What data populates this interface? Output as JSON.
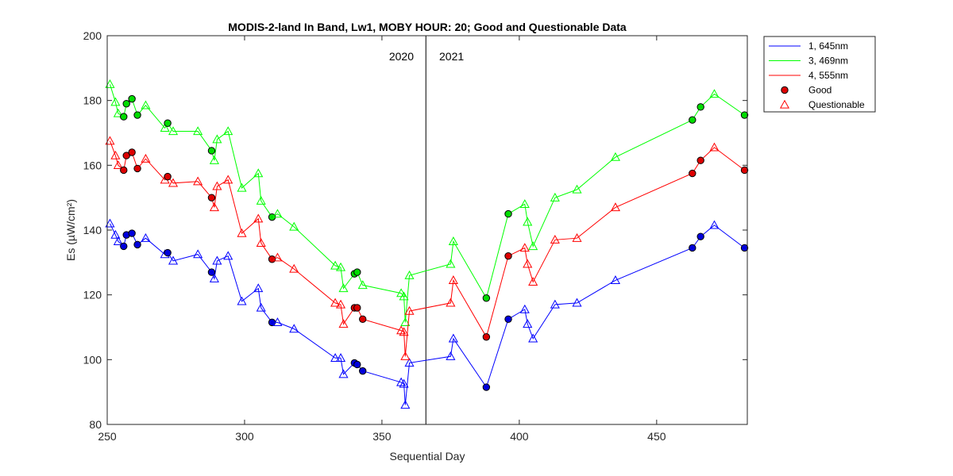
{
  "chart_data": {
    "type": "line",
    "title": "MODIS-2-land In Band,  Lw1, MOBY HOUR: 20;  Good and Questionable Data",
    "xlabel": "Sequential Day",
    "ylabel": "Es (µW/cm²)",
    "xlim": [
      250,
      483
    ],
    "ylim": [
      80,
      200
    ],
    "xticks": [
      250,
      300,
      350,
      400,
      450
    ],
    "yticks": [
      80,
      100,
      120,
      140,
      160,
      180,
      200
    ],
    "grid": false,
    "legend_position": "outside-top-right",
    "year_divider": {
      "x": 366,
      "left_label": "2020",
      "right_label": "2021"
    },
    "series": [
      {
        "name": "1, 645nm",
        "color": "#0000ff",
        "fill": "#0000dd",
        "points": [
          {
            "x": 251,
            "y": 142,
            "q": "Q"
          },
          {
            "x": 253,
            "y": 138.5,
            "q": "Q"
          },
          {
            "x": 254,
            "y": 136.5,
            "q": "Q"
          },
          {
            "x": 256,
            "y": 135,
            "q": "G"
          },
          {
            "x": 257,
            "y": 138.5,
            "q": "G"
          },
          {
            "x": 259,
            "y": 139,
            "q": "G"
          },
          {
            "x": 261,
            "y": 135.5,
            "q": "G"
          },
          {
            "x": 264,
            "y": 137.5,
            "q": "Q"
          },
          {
            "x": 271,
            "y": 132.5,
            "q": "Q"
          },
          {
            "x": 272,
            "y": 133,
            "q": "G"
          },
          {
            "x": 274,
            "y": 130.5,
            "q": "Q"
          },
          {
            "x": 283,
            "y": 132.5,
            "q": "Q"
          },
          {
            "x": 288,
            "y": 127,
            "q": "G"
          },
          {
            "x": 289,
            "y": 125,
            "q": "Q"
          },
          {
            "x": 290,
            "y": 130.5,
            "q": "Q"
          },
          {
            "x": 294,
            "y": 132,
            "q": "Q"
          },
          {
            "x": 299,
            "y": 118,
            "q": "Q"
          },
          {
            "x": 305,
            "y": 122,
            "q": "Q"
          },
          {
            "x": 306,
            "y": 116,
            "q": "Q"
          },
          {
            "x": 310,
            "y": 111.5,
            "q": "G"
          },
          {
            "x": 312,
            "y": 111.5,
            "q": "Q"
          },
          {
            "x": 318,
            "y": 109.5,
            "q": "Q"
          },
          {
            "x": 333,
            "y": 100.5,
            "q": "Q"
          },
          {
            "x": 335,
            "y": 100.5,
            "q": "Q"
          },
          {
            "x": 336,
            "y": 95.5,
            "q": "Q"
          },
          {
            "x": 340,
            "y": 99,
            "q": "G"
          },
          {
            "x": 341,
            "y": 98.5,
            "q": "G"
          },
          {
            "x": 343,
            "y": 96.5,
            "q": "G"
          },
          {
            "x": 357,
            "y": 93,
            "q": "Q"
          },
          {
            "x": 358,
            "y": 92.5,
            "q": "Q"
          },
          {
            "x": 358.5,
            "y": 86,
            "q": "Q"
          },
          {
            "x": 360,
            "y": 99,
            "q": "Q"
          },
          {
            "x": 375,
            "y": 101,
            "q": "Q"
          },
          {
            "x": 376,
            "y": 106.5,
            "q": "Q"
          },
          {
            "x": 388,
            "y": 91.5,
            "q": "G"
          },
          {
            "x": 396,
            "y": 112.5,
            "q": "G"
          },
          {
            "x": 402,
            "y": 115.5,
            "q": "Q"
          },
          {
            "x": 403,
            "y": 111,
            "q": "Q"
          },
          {
            "x": 405,
            "y": 106.5,
            "q": "Q"
          },
          {
            "x": 413,
            "y": 117,
            "q": "Q"
          },
          {
            "x": 421,
            "y": 117.5,
            "q": "Q"
          },
          {
            "x": 435,
            "y": 124.5,
            "q": "Q"
          },
          {
            "x": 463,
            "y": 134.5,
            "q": "G"
          },
          {
            "x": 466,
            "y": 138,
            "q": "G"
          },
          {
            "x": 471,
            "y": 141.5,
            "q": "Q"
          },
          {
            "x": 482,
            "y": 134.5,
            "q": "G"
          }
        ]
      },
      {
        "name": "3, 469nm",
        "color": "#00ff00",
        "fill": "#00dd00",
        "points": [
          {
            "x": 251,
            "y": 185,
            "q": "Q"
          },
          {
            "x": 253,
            "y": 179.5,
            "q": "Q"
          },
          {
            "x": 254,
            "y": 176,
            "q": "Q"
          },
          {
            "x": 256,
            "y": 175,
            "q": "G"
          },
          {
            "x": 257,
            "y": 179,
            "q": "G"
          },
          {
            "x": 259,
            "y": 180.5,
            "q": "G"
          },
          {
            "x": 261,
            "y": 175.5,
            "q": "G"
          },
          {
            "x": 264,
            "y": 178.5,
            "q": "Q"
          },
          {
            "x": 271,
            "y": 171.5,
            "q": "Q"
          },
          {
            "x": 272,
            "y": 173,
            "q": "G"
          },
          {
            "x": 274,
            "y": 170.5,
            "q": "Q"
          },
          {
            "x": 283,
            "y": 170.5,
            "q": "Q"
          },
          {
            "x": 288,
            "y": 164.5,
            "q": "G"
          },
          {
            "x": 289,
            "y": 161.5,
            "q": "Q"
          },
          {
            "x": 290,
            "y": 168,
            "q": "Q"
          },
          {
            "x": 294,
            "y": 170.5,
            "q": "Q"
          },
          {
            "x": 299,
            "y": 153,
            "q": "Q"
          },
          {
            "x": 305,
            "y": 157.5,
            "q": "Q"
          },
          {
            "x": 306,
            "y": 149,
            "q": "Q"
          },
          {
            "x": 310,
            "y": 144,
            "q": "G"
          },
          {
            "x": 312,
            "y": 145,
            "q": "Q"
          },
          {
            "x": 318,
            "y": 141,
            "q": "Q"
          },
          {
            "x": 333,
            "y": 129,
            "q": "Q"
          },
          {
            "x": 335,
            "y": 128.5,
            "q": "Q"
          },
          {
            "x": 336,
            "y": 122,
            "q": "Q"
          },
          {
            "x": 340,
            "y": 126.5,
            "q": "G"
          },
          {
            "x": 341,
            "y": 127,
            "q": "G"
          },
          {
            "x": 343,
            "y": 123,
            "q": "Q"
          },
          {
            "x": 357,
            "y": 120.5,
            "q": "Q"
          },
          {
            "x": 358,
            "y": 119.5,
            "q": "Q"
          },
          {
            "x": 358.5,
            "y": 111.5,
            "q": "Q"
          },
          {
            "x": 360,
            "y": 126,
            "q": "Q"
          },
          {
            "x": 375,
            "y": 129.5,
            "q": "Q"
          },
          {
            "x": 376,
            "y": 136.5,
            "q": "Q"
          },
          {
            "x": 388,
            "y": 119,
            "q": "G"
          },
          {
            "x": 396,
            "y": 145,
            "q": "G"
          },
          {
            "x": 402,
            "y": 148,
            "q": "Q"
          },
          {
            "x": 403,
            "y": 142.5,
            "q": "Q"
          },
          {
            "x": 405,
            "y": 135,
            "q": "Q"
          },
          {
            "x": 413,
            "y": 150,
            "q": "Q"
          },
          {
            "x": 421,
            "y": 152.5,
            "q": "Q"
          },
          {
            "x": 435,
            "y": 162.5,
            "q": "Q"
          },
          {
            "x": 463,
            "y": 174,
            "q": "G"
          },
          {
            "x": 466,
            "y": 178,
            "q": "G"
          },
          {
            "x": 471,
            "y": 182,
            "q": "Q"
          },
          {
            "x": 482,
            "y": 175.5,
            "q": "G"
          }
        ]
      },
      {
        "name": "4, 555nm",
        "color": "#ff0000",
        "fill": "#dd0000",
        "points": [
          {
            "x": 251,
            "y": 167.5,
            "q": "Q"
          },
          {
            "x": 253,
            "y": 163,
            "q": "Q"
          },
          {
            "x": 254,
            "y": 160,
            "q": "Q"
          },
          {
            "x": 256,
            "y": 158.5,
            "q": "G"
          },
          {
            "x": 257,
            "y": 163,
            "q": "G"
          },
          {
            "x": 259,
            "y": 164,
            "q": "G"
          },
          {
            "x": 261,
            "y": 159,
            "q": "G"
          },
          {
            "x": 264,
            "y": 162,
            "q": "Q"
          },
          {
            "x": 271,
            "y": 155.5,
            "q": "Q"
          },
          {
            "x": 272,
            "y": 156.5,
            "q": "G"
          },
          {
            "x": 274,
            "y": 154.5,
            "q": "Q"
          },
          {
            "x": 283,
            "y": 155,
            "q": "Q"
          },
          {
            "x": 288,
            "y": 150,
            "q": "G"
          },
          {
            "x": 289,
            "y": 147,
            "q": "Q"
          },
          {
            "x": 290,
            "y": 153.5,
            "q": "Q"
          },
          {
            "x": 294,
            "y": 155.5,
            "q": "Q"
          },
          {
            "x": 299,
            "y": 139,
            "q": "Q"
          },
          {
            "x": 305,
            "y": 143.5,
            "q": "Q"
          },
          {
            "x": 306,
            "y": 136,
            "q": "Q"
          },
          {
            "x": 310,
            "y": 131,
            "q": "G"
          },
          {
            "x": 312,
            "y": 131.5,
            "q": "Q"
          },
          {
            "x": 318,
            "y": 128,
            "q": "Q"
          },
          {
            "x": 333,
            "y": 117.5,
            "q": "Q"
          },
          {
            "x": 335,
            "y": 117,
            "q": "Q"
          },
          {
            "x": 336,
            "y": 111,
            "q": "Q"
          },
          {
            "x": 340,
            "y": 116,
            "q": "G"
          },
          {
            "x": 341,
            "y": 116,
            "q": "G"
          },
          {
            "x": 343,
            "y": 112.5,
            "q": "G"
          },
          {
            "x": 357,
            "y": 109,
            "q": "Q"
          },
          {
            "x": 358,
            "y": 108.5,
            "q": "Q"
          },
          {
            "x": 358.5,
            "y": 101,
            "q": "Q"
          },
          {
            "x": 360,
            "y": 115,
            "q": "Q"
          },
          {
            "x": 375,
            "y": 117.5,
            "q": "Q"
          },
          {
            "x": 376,
            "y": 124.5,
            "q": "Q"
          },
          {
            "x": 388,
            "y": 107,
            "q": "G"
          },
          {
            "x": 396,
            "y": 132,
            "q": "G"
          },
          {
            "x": 402,
            "y": 134.5,
            "q": "Q"
          },
          {
            "x": 403,
            "y": 129.5,
            "q": "Q"
          },
          {
            "x": 405,
            "y": 124,
            "q": "Q"
          },
          {
            "x": 413,
            "y": 137,
            "q": "Q"
          },
          {
            "x": 421,
            "y": 137.5,
            "q": "Q"
          },
          {
            "x": 435,
            "y": 147,
            "q": "Q"
          },
          {
            "x": 463,
            "y": 157.5,
            "q": "G"
          },
          {
            "x": 466,
            "y": 161.5,
            "q": "G"
          },
          {
            "x": 471,
            "y": 165.5,
            "q": "Q"
          },
          {
            "x": 482,
            "y": 158.5,
            "q": "G"
          }
        ]
      }
    ],
    "legend": {
      "entries": [
        "1, 645nm",
        "3, 469nm",
        "4, 555nm",
        "Good",
        "Questionable"
      ],
      "good_marker_color": "#dd0000",
      "questionable_marker_color": "#ff0000"
    }
  }
}
